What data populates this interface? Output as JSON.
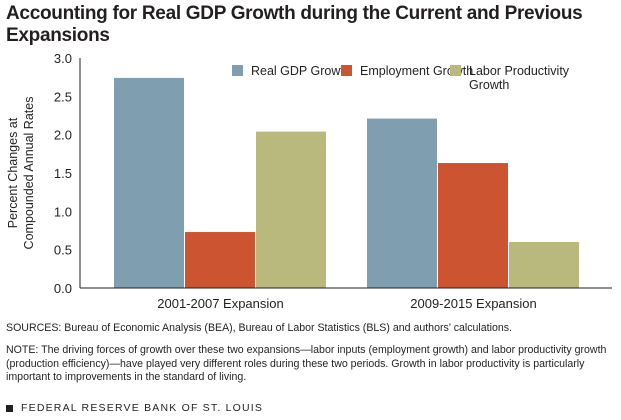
{
  "title": "Accounting for Real GDP Growth during the Current and Previous Expansions",
  "chart_data": {
    "type": "bar",
    "title": "Accounting for Real GDP Growth during the Current and Previous Expansions",
    "ylabel": "Percent Changes at Compounded Annual Rates",
    "xlabel": "",
    "ylim": [
      0,
      3.0
    ],
    "yticks": [
      "0.0",
      "0.5",
      "1.0",
      "1.5",
      "2.0",
      "2.5",
      "3.0"
    ],
    "grid": false,
    "legend": "top-right",
    "categories": [
      "2001-2007 Expansion",
      "2009-2015 Expansion"
    ],
    "series": [
      {
        "name": "Real GDP Growth",
        "values": [
          2.74,
          2.21
        ],
        "color": "#7f9fb0"
      },
      {
        "name": "Employment Growth",
        "values": [
          0.73,
          1.63
        ],
        "color": "#cc5430"
      },
      {
        "name": "Labor Productivity Growth",
        "values": [
          2.04,
          0.6
        ],
        "color": "#b9b97d"
      }
    ]
  },
  "sources": "SOURCES: Bureau of Economic Analysis (BEA), Bureau of Labor Statistics (BLS) and authors’ calculations.",
  "note": "NOTE: The driving forces of growth over these two expansions—labor inputs (employment growth) and labor productivity growth (production efficiency)—have played very different roles during these two periods. Growth in labor productivity is particularly important to improvements in the standard of living.",
  "footer": "FEDERAL RESERVE BANK OF ST. LOUIS"
}
